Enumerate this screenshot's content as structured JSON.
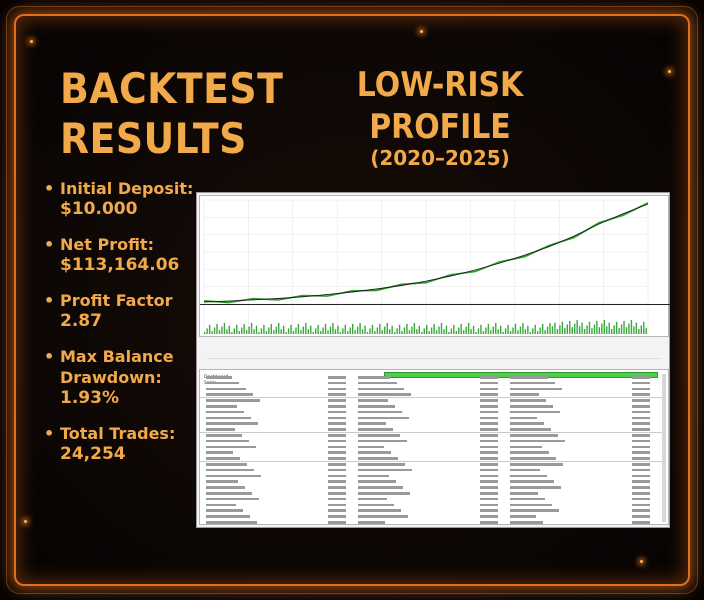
{
  "header": {
    "title_line1": "BACKTEST",
    "title_line2": "RESULTS",
    "profile_line1": "LOW-RISK",
    "profile_line2": "PROFILE",
    "period": "(2020–2025)"
  },
  "stats": [
    {
      "label": "Initial Deposit:",
      "value": "$10.000"
    },
    {
      "label": "Net Profit:",
      "value": "$113,164.06"
    },
    {
      "label": "Profit Factor",
      "value": "2.87"
    },
    {
      "label": "Max Balance Drawdown:",
      "value": "1.93%"
    },
    {
      "label": "Total Trades:",
      "value": "24,254"
    }
  ],
  "bullet": "•",
  "colors": {
    "accent": "#f2a94a",
    "border_glow": "#e0701e",
    "balance_line": "#1a1a1a",
    "equity_line": "#2ca02c"
  },
  "chart_data": {
    "type": "line",
    "series": [
      {
        "values": [
          10000,
          11000,
          12500,
          14000,
          16000,
          18500,
          21500,
          25000,
          29000,
          34000,
          40000,
          47000,
          55000,
          64000,
          74000,
          86000,
          100000,
          112000,
          123164
        ]
      }
    ],
    "xlabel": "",
    "ylabel": ""
  },
  "report": {
    "rows": [
      [
        "Dashboard",
        "",
        "",
        "",
        "",
        ""
      ],
      [
        "Saldo",
        "",
        "",
        "",
        "",
        ""
      ],
      [
        "",
        "",
        "",
        "",
        "",
        ""
      ],
      [
        "",
        "",
        "",
        "",
        "",
        ""
      ],
      [
        "",
        "",
        "",
        "",
        "",
        ""
      ]
    ]
  }
}
